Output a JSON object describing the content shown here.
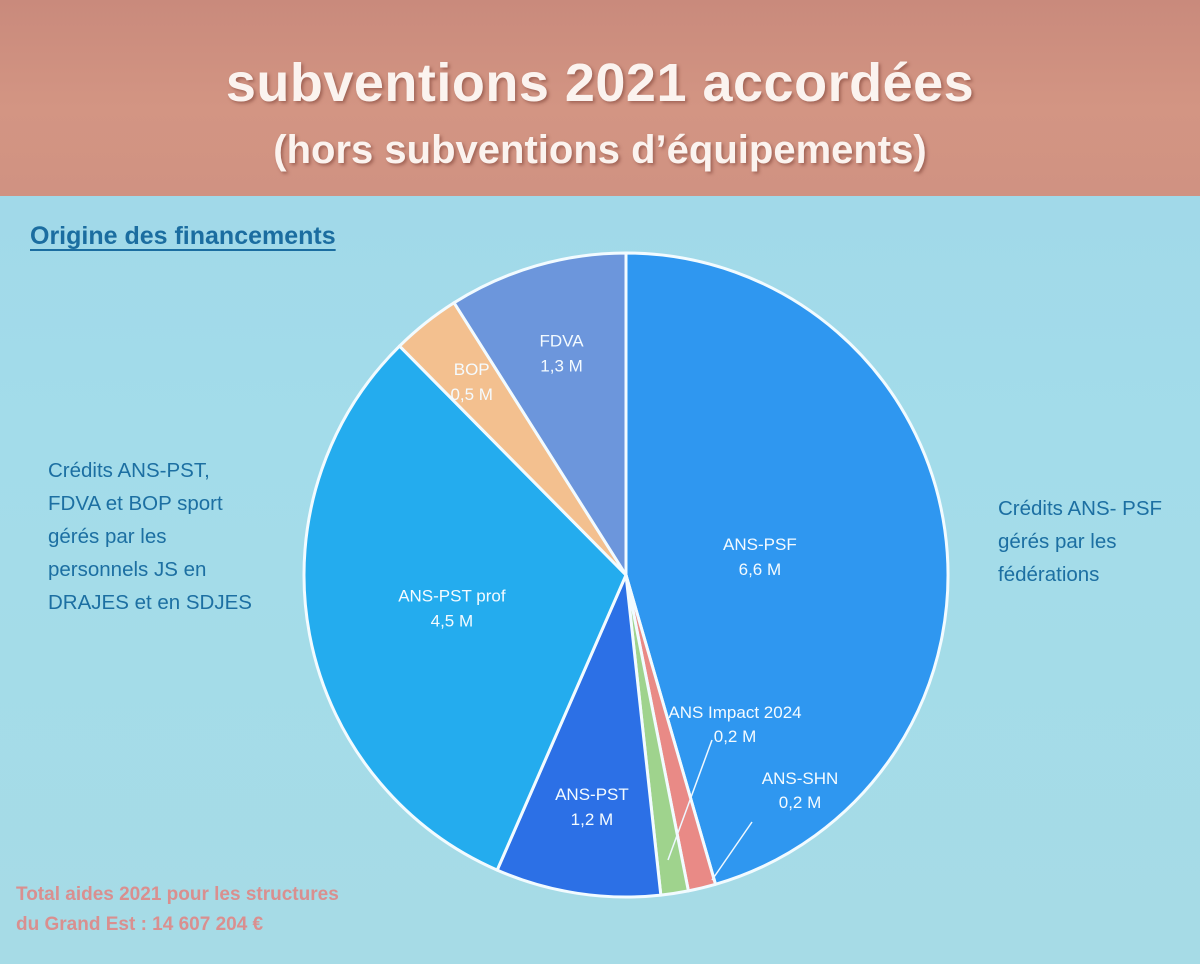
{
  "header": {
    "title": "subventions 2021 accordées",
    "subtitle": "(hors subventions d’équipements)"
  },
  "section_heading": "Origine des financements",
  "side_left": [
    "Crédits ANS-PST,",
    "FDVA et BOP sport",
    "gérés par les",
    "personnels JS en",
    "DRAJES et en SDJES"
  ],
  "side_right": [
    "Crédits ANS- PSF",
    "gérés par les",
    "fédérations"
  ],
  "total": [
    "Total aides 2021 pour les structures",
    "du Grand Est : 14 607 204 €"
  ],
  "chart_data": {
    "type": "pie",
    "title": "",
    "start_angle_deg": 0,
    "direction": "clockwise",
    "slices": [
      {
        "name": "ANS-PSF",
        "label": "6,6 M",
        "value": 6.6,
        "color": "#2f97f0"
      },
      {
        "name": "ANS-SHN",
        "label": "0,2 M",
        "value": 0.2,
        "color": "#e98a86"
      },
      {
        "name": "ANS Impact 2024",
        "label": "0,2 M",
        "value": 0.2,
        "color": "#9fd38d"
      },
      {
        "name": "ANS-PST",
        "label": "1,2 M",
        "value": 1.2,
        "color": "#2c70e6"
      },
      {
        "name": "ANS-PST prof",
        "label": "4,5 M",
        "value": 4.5,
        "color": "#24acee"
      },
      {
        "name": "BOP",
        "label": "0,5 M",
        "value": 0.5,
        "color": "#f3c08f"
      },
      {
        "name": "FDVA",
        "label": "1,3 M",
        "value": 1.3,
        "color": "#6c96dc"
      }
    ],
    "stroke_color": "#f2fbff"
  }
}
